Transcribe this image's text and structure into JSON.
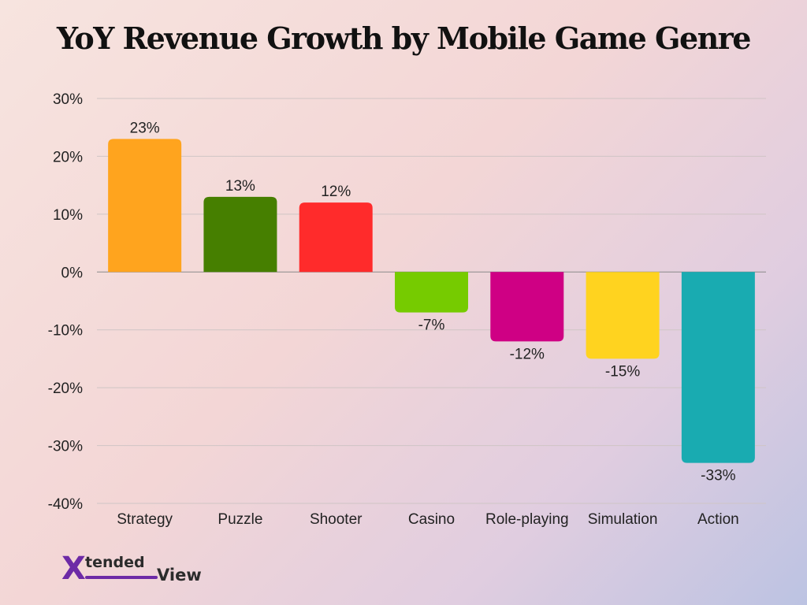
{
  "chart_data": {
    "type": "bar",
    "title": "YoY Revenue Growth by Mobile Game Genre",
    "xlabel": "",
    "ylabel": "",
    "categories": [
      "Strategy",
      "Puzzle",
      "Shooter",
      "Casino",
      "Role-playing",
      "Simulation",
      "Action"
    ],
    "values": [
      23,
      13,
      12,
      -7,
      -12,
      -15,
      -33
    ],
    "data_labels": [
      "23%",
      "13%",
      "12%",
      "-7%",
      "-12%",
      "-15%",
      "-33%"
    ],
    "colors": [
      "#FFA41E",
      "#467F00",
      "#FF2B2B",
      "#76CB00",
      "#CF0084",
      "#FFD31F",
      "#19ABB1"
    ],
    "ylim": [
      -40,
      30
    ],
    "yticks": [
      30,
      20,
      10,
      0,
      -10,
      -20,
      -30,
      -40
    ],
    "ytick_labels": [
      "30%",
      "20%",
      "10%",
      "0%",
      "-10%",
      "-20%",
      "-30%",
      "-40%"
    ],
    "grid": true,
    "legend": "none"
  },
  "brand": {
    "logo_x": "X",
    "logo_tended": "tended",
    "logo_view": "View",
    "accent_color": "#6d2aa6"
  }
}
